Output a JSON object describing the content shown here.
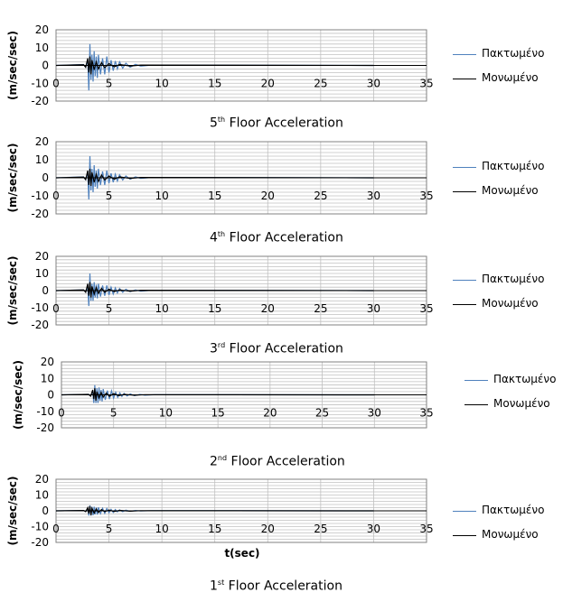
{
  "colors": {
    "plaktomeno": "#4f81bd",
    "monomeno": "#000000",
    "grid": "#c0c0c0",
    "axis": "#808080"
  },
  "legend_labels": [
    "Πακτωμένο",
    "Μονωμένο"
  ],
  "chart_data": [
    {
      "type": "line",
      "floor": 5,
      "caption_main": "5",
      "caption_sup": "th",
      "caption_rest": " Floor Acceleration",
      "ylabel": "(m/sec/sec)",
      "xlabel": "",
      "xlim": [
        0,
        35
      ],
      "ylim": [
        -20,
        20
      ],
      "xticks": [
        0,
        5,
        10,
        15,
        20,
        25,
        30,
        35
      ],
      "yticks": [
        -20,
        -10,
        0,
        10,
        20
      ],
      "legend": "right",
      "series": [
        {
          "name": "Πακτωμένο",
          "x": [
            0,
            2.6,
            2.8,
            3.0,
            3.1,
            3.2,
            3.3,
            3.4,
            3.5,
            3.6,
            3.7,
            3.8,
            3.9,
            4.0,
            4.2,
            4.4,
            4.6,
            4.8,
            5.0,
            5.2,
            5.4,
            5.6,
            5.8,
            6.0,
            6.3,
            6.6,
            7.0,
            7.5,
            8.0,
            9.0,
            30
          ],
          "y": [
            0,
            0.5,
            -1,
            3,
            -14,
            12,
            -8,
            6,
            -9,
            8,
            -6,
            5,
            -7,
            6,
            -5,
            4,
            -5,
            5,
            -4,
            3,
            -3,
            2.5,
            -2,
            2,
            -1.5,
            1.2,
            -1,
            0.6,
            -0.4,
            0.2,
            0
          ]
        },
        {
          "name": "Μονωμένο",
          "x": [
            0,
            2.6,
            2.8,
            3.0,
            3.1,
            3.2,
            3.3,
            3.4,
            3.6,
            3.8,
            4.0,
            4.3,
            4.6,
            5.0,
            5.5,
            6.0,
            7.0,
            8.0,
            30
          ],
          "y": [
            0,
            0.4,
            -1,
            4,
            -4,
            5,
            -5,
            3,
            -2.5,
            2,
            -2,
            1.5,
            -1.2,
            1,
            -0.8,
            0.5,
            -0.3,
            0.2,
            0
          ]
        }
      ]
    },
    {
      "type": "line",
      "floor": 4,
      "caption_main": "4",
      "caption_sup": "th",
      "caption_rest": " Floor Acceleration",
      "ylabel": "(m/sec/sec)",
      "xlabel": "",
      "xlim": [
        0,
        35
      ],
      "ylim": [
        -20,
        20
      ],
      "xticks": [
        0,
        5,
        10,
        15,
        20,
        25,
        30,
        35
      ],
      "yticks": [
        -20,
        -10,
        0,
        10,
        20
      ],
      "legend": "right",
      "series": [
        {
          "name": "Πακτωμένο",
          "x": [
            0,
            2.6,
            2.8,
            3.0,
            3.1,
            3.2,
            3.3,
            3.4,
            3.5,
            3.6,
            3.7,
            3.8,
            3.9,
            4.0,
            4.2,
            4.4,
            4.6,
            4.8,
            5.0,
            5.2,
            5.4,
            5.6,
            5.8,
            6.0,
            6.3,
            6.6,
            7.0,
            7.5,
            8.0,
            9.0,
            30
          ],
          "y": [
            0,
            0.5,
            -1,
            3,
            -12,
            12,
            -7,
            5,
            -8,
            7,
            -5,
            4,
            -6,
            5,
            -4,
            3.5,
            -4,
            4,
            -3,
            2.5,
            -2.5,
            2,
            -1.8,
            1.6,
            -1.2,
            1,
            -0.8,
            0.5,
            -0.3,
            0.2,
            0
          ]
        },
        {
          "name": "Μονωμένο",
          "x": [
            0,
            2.6,
            2.8,
            3.0,
            3.1,
            3.2,
            3.3,
            3.4,
            3.6,
            3.8,
            4.0,
            4.3,
            4.6,
            5.0,
            5.5,
            6.0,
            7.0,
            8.0,
            30
          ],
          "y": [
            0,
            0.4,
            -1,
            4,
            -4,
            5,
            -4.5,
            3,
            -2.5,
            2,
            -2,
            1.5,
            -1.2,
            1,
            -0.8,
            0.5,
            -0.3,
            0.2,
            0
          ]
        }
      ]
    },
    {
      "type": "line",
      "floor": 3,
      "caption_main": "3",
      "caption_sup": "rd",
      "caption_rest": " Floor Acceleration",
      "ylabel": "(m/sec/sec)",
      "xlabel": "",
      "xlim": [
        0,
        35
      ],
      "ylim": [
        -20,
        20
      ],
      "xticks": [
        0,
        5,
        10,
        15,
        20,
        25,
        30,
        35
      ],
      "yticks": [
        -20,
        -10,
        0,
        10,
        20
      ],
      "legend": "right",
      "series": [
        {
          "name": "Πακτωμένο",
          "x": [
            0,
            2.6,
            2.8,
            3.0,
            3.1,
            3.2,
            3.3,
            3.4,
            3.5,
            3.6,
            3.7,
            3.8,
            3.9,
            4.0,
            4.2,
            4.4,
            4.6,
            4.8,
            5.0,
            5.2,
            5.4,
            5.6,
            5.8,
            6.0,
            6.3,
            6.6,
            7.0,
            7.5,
            8.0,
            9.0,
            30
          ],
          "y": [
            0,
            0.4,
            -0.8,
            2.5,
            -9,
            10,
            -6,
            4,
            -6,
            5,
            -4,
            3.5,
            -4.5,
            4,
            -3.5,
            3,
            -3,
            3,
            -2.5,
            2,
            -2,
            1.6,
            -1.4,
            1.2,
            -1,
            0.8,
            -0.6,
            0.4,
            -0.3,
            0.2,
            0
          ]
        },
        {
          "name": "Μονωμένο",
          "x": [
            0,
            2.6,
            2.8,
            3.0,
            3.1,
            3.2,
            3.3,
            3.4,
            3.6,
            3.8,
            4.0,
            4.3,
            4.6,
            5.0,
            5.5,
            6.0,
            7.0,
            8.0,
            30
          ],
          "y": [
            0,
            0.4,
            -1,
            4,
            -3,
            5,
            -4,
            2.5,
            -2,
            1.8,
            -1.6,
            1.3,
            -1,
            0.8,
            -0.6,
            0.4,
            -0.3,
            0.2,
            0
          ]
        }
      ]
    },
    {
      "type": "line",
      "floor": 2,
      "caption_main": "2",
      "caption_sup": "nd",
      "caption_rest": " Floor Acceleration",
      "ylabel": "(m/sec/sec)",
      "xlabel": "",
      "xlim": [
        0,
        35
      ],
      "ylim": [
        -20,
        20
      ],
      "xticks": [
        0,
        5,
        10,
        15,
        20,
        25,
        30,
        35
      ],
      "yticks": [
        -20,
        -10,
        0,
        10,
        20
      ],
      "legend": "right",
      "series": [
        {
          "name": "Πακτωμένο",
          "x": [
            0,
            2.6,
            2.8,
            3.0,
            3.1,
            3.2,
            3.3,
            3.4,
            3.5,
            3.6,
            3.7,
            3.8,
            3.9,
            4.0,
            4.2,
            4.4,
            4.6,
            4.8,
            5.0,
            5.2,
            5.4,
            5.6,
            5.8,
            6.0,
            6.3,
            6.6,
            7.0,
            7.5,
            8.0,
            9.0,
            30
          ],
          "y": [
            0,
            0.3,
            -0.6,
            2,
            -5,
            6,
            -5,
            4,
            -5,
            4.5,
            -3.5,
            3,
            -4,
            3.5,
            -3,
            2.6,
            -2.6,
            2.4,
            -2,
            1.6,
            -1.5,
            1.2,
            -1,
            0.9,
            -0.7,
            0.6,
            -0.5,
            0.3,
            -0.2,
            0.1,
            0
          ]
        },
        {
          "name": "Μονωμένο",
          "x": [
            0,
            2.6,
            2.8,
            3.0,
            3.1,
            3.2,
            3.3,
            3.4,
            3.6,
            3.8,
            4.0,
            4.3,
            4.6,
            5.0,
            5.5,
            6.0,
            7.0,
            8.0,
            30
          ],
          "y": [
            0,
            0.3,
            -0.8,
            3,
            -2.5,
            4,
            -3.5,
            2,
            -1.8,
            1.5,
            -1.4,
            1.1,
            -0.9,
            0.7,
            -0.5,
            0.3,
            -0.2,
            0.1,
            0
          ]
        }
      ]
    },
    {
      "type": "line",
      "floor": 1,
      "caption_main": "1",
      "caption_sup": "st",
      "caption_rest": " Floor Acceleration",
      "ylabel": "(m/sec/sec)",
      "xlabel": "t(sec)",
      "xlim": [
        0,
        35
      ],
      "ylim": [
        -20,
        20
      ],
      "xticks": [
        0,
        5,
        10,
        15,
        20,
        25,
        30,
        35
      ],
      "yticks": [
        -20,
        -10,
        0,
        10,
        20
      ],
      "legend": "right",
      "series": [
        {
          "name": "Πακτωμένο",
          "x": [
            0,
            2.6,
            2.8,
            3.0,
            3.1,
            3.2,
            3.3,
            3.4,
            3.5,
            3.6,
            3.7,
            3.8,
            3.9,
            4.0,
            4.2,
            4.4,
            4.6,
            4.8,
            5.0,
            5.2,
            5.4,
            5.6,
            5.8,
            6.0,
            6.3,
            6.6,
            7.0,
            7.5,
            8.0,
            9.0,
            30
          ],
          "y": [
            0,
            0.2,
            -0.4,
            1.5,
            -3,
            3.5,
            -3,
            2.5,
            -2.8,
            2.6,
            -2.2,
            2,
            -2.4,
            2.2,
            -1.8,
            1.6,
            -1.6,
            1.5,
            -1.2,
            1,
            -1,
            0.8,
            -0.7,
            0.6,
            -0.5,
            0.4,
            -0.3,
            0.2,
            -0.1,
            0.1,
            0
          ]
        },
        {
          "name": "Μονωμένο",
          "x": [
            0,
            2.6,
            2.8,
            3.0,
            3.1,
            3.2,
            3.3,
            3.4,
            3.6,
            3.8,
            4.0,
            4.3,
            4.6,
            5.0,
            5.5,
            6.0,
            7.0,
            8.0,
            30
          ],
          "y": [
            0,
            0.2,
            -0.5,
            2,
            -1.8,
            3,
            -2.8,
            1.6,
            -1.4,
            1.2,
            -1,
            0.8,
            -0.6,
            0.5,
            -0.4,
            0.3,
            -0.2,
            0.1,
            0
          ]
        }
      ]
    }
  ]
}
